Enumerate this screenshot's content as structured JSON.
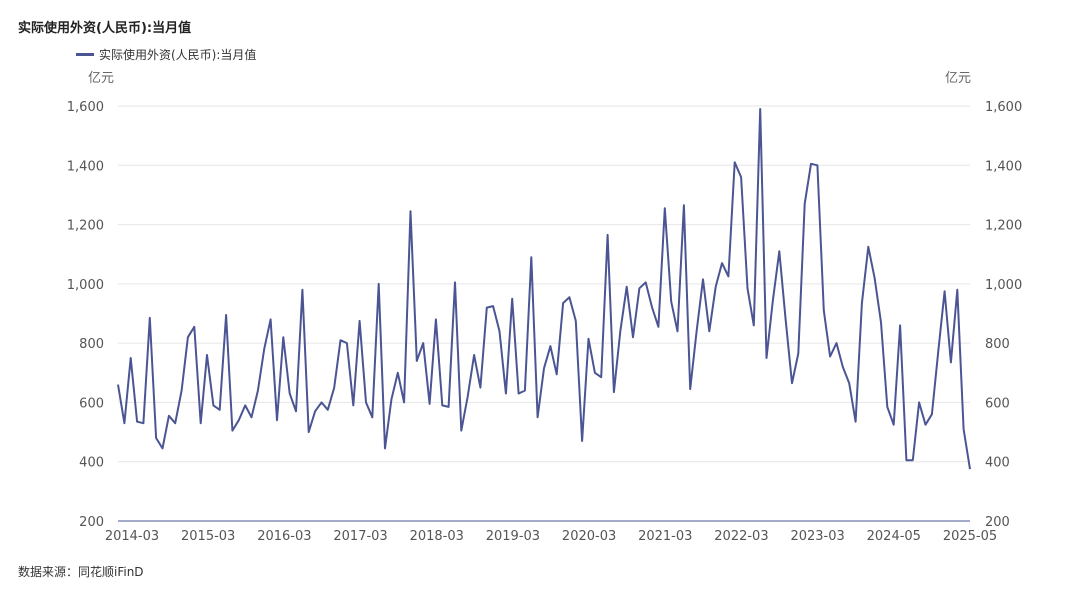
{
  "chart_data": {
    "type": "line",
    "title": "实际使用外资(人民币):当月值",
    "source": "数据来源：同花顺iFinD",
    "y_unit_left": "亿元",
    "y_unit_right": "亿元",
    "ylim": [
      200,
      1600
    ],
    "yticks": [
      200,
      400,
      600,
      800,
      1000,
      1200,
      1400,
      1600
    ],
    "ytick_labels": [
      "200",
      "400",
      "600",
      "800",
      "1,000",
      "1,200",
      "1,400",
      "1,600"
    ],
    "xtick_labels": [
      "2014-03",
      "2015-03",
      "2016-03",
      "2017-03",
      "2018-03",
      "2019-03",
      "2020-03",
      "2021-03",
      "2022-03",
      "2023-03",
      "2024-05",
      "2025-05"
    ],
    "grid": true,
    "legend": "top-left",
    "series": [
      {
        "name": "实际使用外资(人民币):当月值",
        "color": "#4b5594",
        "values": [
          660,
          530,
          750,
          535,
          530,
          885,
          480,
          445,
          555,
          530,
          640,
          820,
          855,
          530,
          760,
          590,
          575,
          895,
          505,
          540,
          590,
          550,
          640,
          780,
          880,
          540,
          820,
          630,
          570,
          980,
          500,
          570,
          600,
          575,
          650,
          810,
          800,
          590,
          875,
          600,
          550,
          1000,
          445,
          610,
          700,
          600,
          1245,
          740,
          800,
          595,
          880,
          590,
          585,
          1005,
          505,
          620,
          760,
          650,
          920,
          925,
          840,
          630,
          950,
          630,
          640,
          1090,
          550,
          715,
          790,
          695,
          935,
          955,
          875,
          470,
          815,
          700,
          685,
          1165,
          635,
          840,
          990,
          820,
          985,
          1005,
          920,
          855,
          1255,
          940,
          840,
          1265,
          645,
          840,
          1015,
          840,
          990,
          1070,
          1025,
          1410,
          1360,
          985,
          860,
          1590,
          750,
          945,
          1110,
          880,
          665,
          765,
          1270,
          1405,
          1400,
          910,
          755,
          800,
          720,
          665,
          535,
          935,
          1125,
          1020,
          870,
          585,
          525,
          860,
          405,
          405,
          600,
          525,
          560,
          770,
          975,
          735,
          980,
          510,
          375
        ]
      }
    ]
  }
}
